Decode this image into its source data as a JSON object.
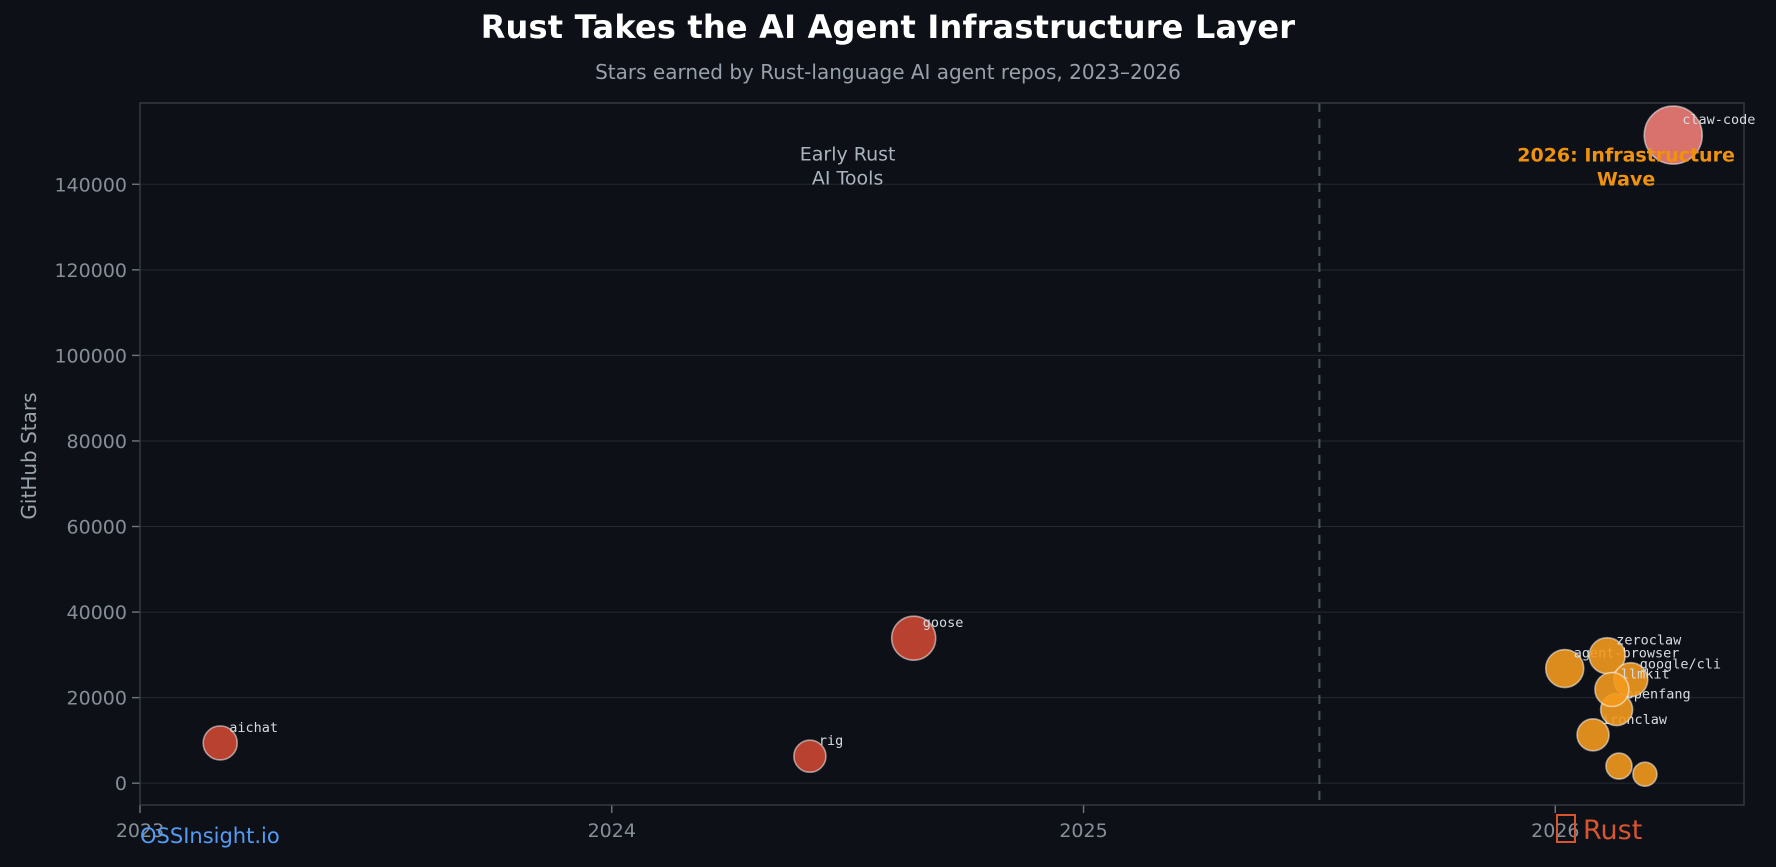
{
  "header": {
    "title": "Rust Takes the AI Agent Infrastructure Layer",
    "subtitle": "Stars earned by Rust-language AI agent repos, 2023–2026"
  },
  "footer": {
    "brand": "OSSInsight.io",
    "language_label": "Rust",
    "language_icon": "crab-emoji-missing-glyph-box"
  },
  "colors": {
    "background": "#0d1117",
    "title": "#ffffff",
    "subtitle": "#98a1ab",
    "plot_border": "#3a4049",
    "gridline": "#232931",
    "tick": "#6e7681",
    "tick_label": "#868e98",
    "axis_title": "#9aa3ad",
    "bubble_label": "#d6dce2",
    "bubble_stroke": "rgba(255,255,255,0.52)",
    "divider": "#4b525c",
    "brand_blue": "#549bf5",
    "rust_red": "#d8552f",
    "red": "#cc4733",
    "orange": "#f3991e",
    "salmon": "#ef7d75"
  },
  "chart_data": {
    "type": "scatter",
    "title": "Rust Takes the AI Agent Infrastructure Layer",
    "subtitle": "Stars earned by Rust-language AI agent repos, 2023–2026",
    "xlabel": "",
    "ylabel": "GitHub Stars",
    "xlim": [
      2023,
      2026.4
    ],
    "ylim": [
      -5100,
      159000
    ],
    "x_ticks": [
      2023,
      2024,
      2025,
      2026
    ],
    "y_ticks": [
      0,
      20000,
      40000,
      60000,
      80000,
      100000,
      120000,
      140000
    ],
    "grid": "horizontal",
    "legend": "none",
    "divider_x": 2025.5,
    "annotations": [
      {
        "id": "early-rust-ai-tools",
        "lines": [
          "Early Rust",
          "AI Tools"
        ],
        "x": 2024.5,
        "y": 146000,
        "color": "#aab4bf",
        "bold": false
      },
      {
        "id": "infrastructure-wave",
        "lines": [
          "2026: Infrastructure",
          "Wave"
        ],
        "x": 2026.15,
        "y": 145800,
        "color": "#f0920e",
        "bold": true
      }
    ],
    "points": [
      {
        "name": "aichat",
        "x": 2023.17,
        "stars": 9400,
        "r": 17,
        "color": "red",
        "labeled": true
      },
      {
        "name": "rig",
        "x": 2024.42,
        "stars": 6300,
        "r": 16,
        "color": "red",
        "labeled": true
      },
      {
        "name": "goose",
        "x": 2024.64,
        "stars": 33900,
        "r": 22,
        "color": "red",
        "labeled": true
      },
      {
        "name": "agent-browser",
        "x": 2026.02,
        "stars": 26800,
        "r": 19,
        "color": "orange",
        "labeled": true
      },
      {
        "name": "ironclaw",
        "x": 2026.08,
        "stars": 11300,
        "r": 16,
        "color": "orange",
        "labeled": true
      },
      {
        "name": "openfang",
        "x": 2026.13,
        "stars": 17200,
        "r": 16,
        "color": "orange",
        "labeled": true
      },
      {
        "name": "zeroclaw",
        "x": 2026.11,
        "stars": 29800,
        "r": 18,
        "color": "orange",
        "labeled": true
      },
      {
        "name": "google/cli",
        "x": 2026.16,
        "stars": 24200,
        "r": 17,
        "color": "orange",
        "labeled": true
      },
      {
        "name": "llmkit",
        "x": 2026.12,
        "stars": 21900,
        "r": 17,
        "color": "orange",
        "labeled": true
      },
      {
        "name": "",
        "x": 2026.135,
        "stars": 4000,
        "r": 13,
        "color": "orange",
        "labeled": false
      },
      {
        "name": "",
        "x": 2026.19,
        "stars": 2100,
        "r": 12,
        "color": "orange",
        "labeled": false
      },
      {
        "name": "claw-code",
        "x": 2026.25,
        "stars": 151500,
        "r": 29,
        "color": "salmon",
        "labeled": true
      }
    ]
  }
}
